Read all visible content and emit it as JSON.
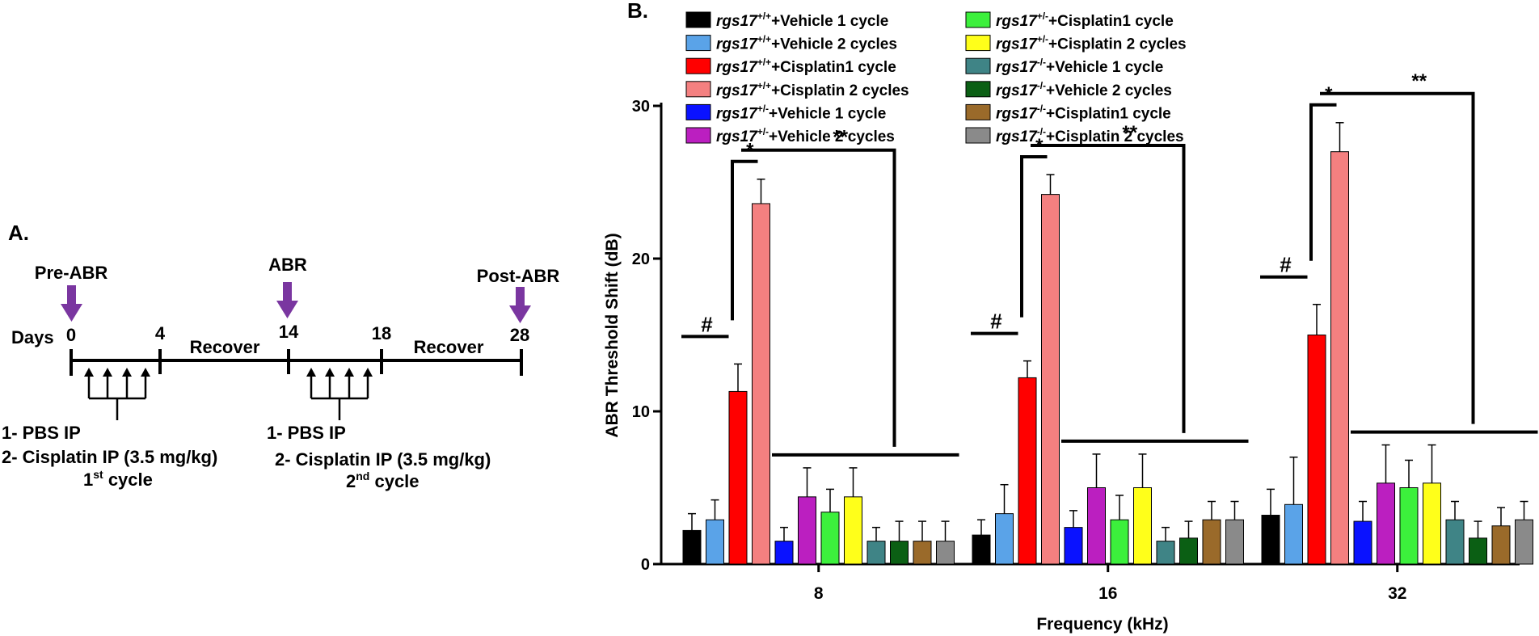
{
  "colors": {
    "arrow": "#7a36a0",
    "line": "#000000"
  },
  "panel_a": {
    "label": "A.",
    "pre_abr": "Pre-ABR",
    "abr": "ABR",
    "post_abr": "Post-ABR",
    "days_label": "Days",
    "day_0": "0",
    "day_4": "4",
    "day_14": "14",
    "day_18": "18",
    "day_28": "28",
    "recover_1": "Recover",
    "recover_2": "Recover",
    "cycle1_line1": "1- PBS IP",
    "cycle1_line2": "2- Cisplatin IP (3.5 mg/kg)",
    "cycle1_label": "1",
    "cycle1_sup": "st",
    "cycle1_suffix": " cycle",
    "cycle2_line1": "1- PBS IP",
    "cycle2_line2": "2- Cisplatin IP (3.5 mg/kg)",
    "cycle2_label": "2",
    "cycle2_sup": "nd",
    "cycle2_suffix": " cycle"
  },
  "panel_b": {
    "label": "B."
  },
  "chart_data": {
    "type": "bar",
    "title": "",
    "xlabel": "Frequency (kHz)",
    "ylabel": "ABR Threshold Shift (dB)",
    "ylim": [
      0,
      30
    ],
    "yticks": [
      0,
      10,
      20,
      30
    ],
    "categories": [
      "8",
      "16",
      "32"
    ],
    "legend_position": "top",
    "series": [
      {
        "gene": "rgs17",
        "genotype": "+/+",
        "treatment": "+Vehicle 1 cycle",
        "color": "#000000",
        "values": [
          2.2,
          1.9,
          3.2
        ],
        "errors": [
          1.1,
          1.0,
          1.7
        ]
      },
      {
        "gene": "rgs17",
        "genotype": "+/+",
        "treatment": "+Vehicle 2 cycles",
        "color": "#5aa3e8",
        "values": [
          2.9,
          3.3,
          3.9
        ],
        "errors": [
          1.3,
          1.9,
          3.1
        ]
      },
      {
        "gene": "rgs17",
        "genotype": "+/+",
        "treatment": "+Cisplatin1 cycle",
        "color": "#ff0000",
        "values": [
          11.3,
          12.2,
          15.0
        ],
        "errors": [
          1.8,
          1.1,
          2.0
        ]
      },
      {
        "gene": "rgs17",
        "genotype": "+/+",
        "treatment": "+Cisplatin 2 cycles",
        "color": "#f48080",
        "values": [
          23.6,
          24.2,
          27.0
        ],
        "errors": [
          1.6,
          1.3,
          1.9
        ]
      },
      {
        "gene": "rgs17",
        "genotype": "+/-",
        "treatment": "+Vehicle 1 cycle",
        "color": "#0a12ff",
        "values": [
          1.5,
          2.4,
          2.8
        ],
        "errors": [
          0.9,
          1.1,
          1.3
        ]
      },
      {
        "gene": "rgs17",
        "genotype": "+/-",
        "treatment": "+Vehicle 2 cycles",
        "color": "#bb1fc0",
        "values": [
          4.4,
          5.0,
          5.3
        ],
        "errors": [
          1.9,
          2.2,
          2.5
        ]
      },
      {
        "gene": "rgs17",
        "genotype": "+/-",
        "treatment": "+Cisplatin1 cycle",
        "color": "#3cf03c",
        "values": [
          3.4,
          2.9,
          5.0
        ],
        "errors": [
          1.5,
          1.6,
          1.8
        ]
      },
      {
        "gene": "rgs17",
        "genotype": "+/-",
        "treatment": "+Cisplatin 2 cycles",
        "color": "#ffff1a",
        "values": [
          4.4,
          5.0,
          5.3
        ],
        "errors": [
          1.9,
          2.2,
          2.5
        ]
      },
      {
        "gene": "rgs17",
        "genotype": "-/-",
        "treatment": "+Vehicle 1 cycle",
        "color": "#3f8486",
        "values": [
          1.5,
          1.5,
          2.9
        ],
        "errors": [
          0.9,
          0.9,
          1.2
        ]
      },
      {
        "gene": "rgs17",
        "genotype": "-/-",
        "treatment": "+Vehicle 2 cycles",
        "color": "#0b5f14",
        "values": [
          1.5,
          1.7,
          1.7
        ],
        "errors": [
          1.3,
          1.1,
          1.1
        ]
      },
      {
        "gene": "rgs17",
        "genotype": "-/-",
        "treatment": "+Cisplatin1 cycle",
        "color": "#9a6a2a",
        "values": [
          1.5,
          2.9,
          2.5
        ],
        "errors": [
          1.3,
          1.2,
          1.2
        ]
      },
      {
        "gene": "rgs17",
        "genotype": "-/-",
        "treatment": "+Cisplatin 2 cycles",
        "color": "#8a8a8a",
        "values": [
          1.5,
          2.9,
          2.9
        ],
        "errors": [
          1.3,
          1.2,
          1.2
        ]
      }
    ],
    "annotations": {
      "hash": "#",
      "star": "*",
      "double_star": "**"
    }
  }
}
